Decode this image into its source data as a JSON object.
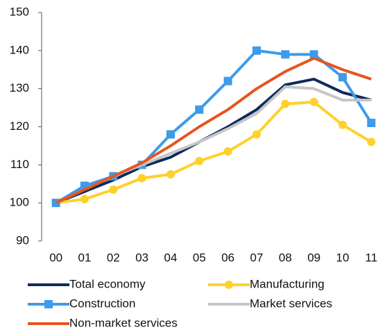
{
  "chart_data": {
    "type": "line",
    "categories": [
      "00",
      "01",
      "02",
      "03",
      "04",
      "05",
      "06",
      "07",
      "08",
      "09",
      "10",
      "11"
    ],
    "ylim": [
      90,
      150
    ],
    "yticks": [
      90,
      100,
      110,
      120,
      130,
      140,
      150
    ],
    "series": [
      {
        "name": "Total economy",
        "color": "#0e2a5e",
        "marker": "none",
        "values": [
          100,
          103,
          106,
          109.5,
          112,
          116,
          120,
          124.5,
          131,
          132.5,
          129,
          127
        ]
      },
      {
        "name": "Manufacturing",
        "color": "#fdd12a",
        "marker": "circle",
        "values": [
          100,
          101,
          103.5,
          106.5,
          107.5,
          111,
          113.5,
          118,
          126,
          126.5,
          120.5,
          116
        ]
      },
      {
        "name": "Construction",
        "color": "#3d9be9",
        "marker": "square",
        "values": [
          100,
          104.5,
          107,
          110,
          118,
          124.5,
          132,
          140,
          139,
          139,
          133,
          121
        ]
      },
      {
        "name": "Market services",
        "color": "#c6c6c6",
        "marker": "none",
        "values": [
          100,
          103.5,
          107,
          110,
          113,
          116,
          119.5,
          123.5,
          130.5,
          130,
          127,
          127
        ]
      },
      {
        "name": "Non-market services",
        "color": "#e8541e",
        "marker": "none",
        "values": [
          100,
          103.5,
          107,
          110.5,
          115,
          120,
          124.5,
          130,
          134.5,
          138,
          135,
          132.5
        ]
      }
    ]
  }
}
